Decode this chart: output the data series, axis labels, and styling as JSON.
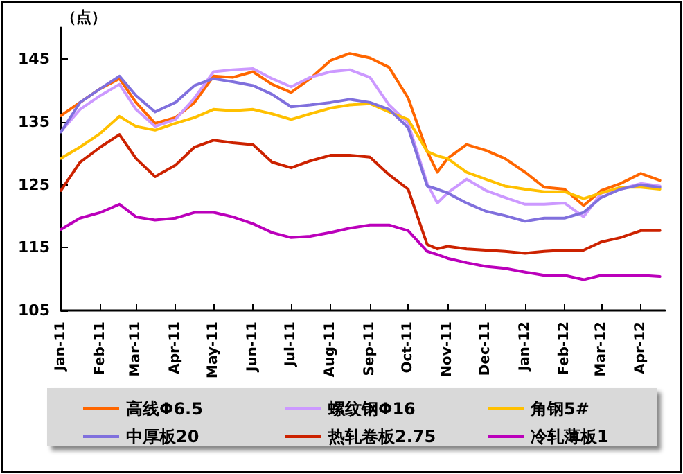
{
  "chart_data": {
    "type": "line",
    "ylabel": "（点）",
    "x": [
      "2011-01-01",
      "2011-01-16",
      "2011-02-01",
      "2011-02-16",
      "2011-03-01",
      "2011-03-16",
      "2011-04-01",
      "2011-04-16",
      "2011-05-01",
      "2011-05-16",
      "2011-06-01",
      "2011-06-16",
      "2011-07-01",
      "2011-07-16",
      "2011-08-01",
      "2011-08-16",
      "2011-09-01",
      "2011-09-16",
      "2011-10-01",
      "2011-10-16",
      "2011-10-24",
      "2011-11-01",
      "2011-11-16",
      "2011-12-01",
      "2011-12-16",
      "2012-01-01",
      "2012-01-16",
      "2012-02-01",
      "2012-02-16",
      "2012-03-01",
      "2012-03-16",
      "2012-04-01",
      "2012-04-16"
    ],
    "series": [
      {
        "name": "高线Φ6.5",
        "color": "#ff6600",
        "values": [
          136,
          138.1,
          140.3,
          141.9,
          138.1,
          134.8,
          135.7,
          138.1,
          142.3,
          142.1,
          143,
          141,
          139.7,
          141.9,
          144.8,
          145.9,
          145.2,
          143.7,
          138.8,
          130.3,
          127,
          129.2,
          131.4,
          130.5,
          129.2,
          127,
          124.6,
          124.3,
          121.7,
          124.1,
          125.2,
          126.8,
          125.7
        ]
      },
      {
        "name": "螺纹钢Φ16",
        "color": "#cc99ff",
        "values": [
          133.5,
          137,
          139.2,
          141,
          137,
          134.3,
          135.4,
          138.8,
          143,
          143.3,
          143.5,
          141.9,
          140.6,
          142.1,
          143,
          143.3,
          142.1,
          137.7,
          134.8,
          125.2,
          122.1,
          123.7,
          125.9,
          124.1,
          123,
          121.9,
          121.9,
          122.1,
          119.9,
          123.7,
          124.3,
          125.2,
          124.8
        ]
      },
      {
        "name": "角钢5#",
        "color": "#ffc000",
        "values": [
          129.2,
          131,
          133.2,
          135.9,
          134.3,
          133.7,
          134.8,
          135.7,
          137,
          136.8,
          137,
          136.3,
          135.4,
          136.3,
          137.2,
          137.7,
          137.9,
          136.6,
          135.4,
          130.3,
          129.6,
          129.2,
          127,
          125.9,
          124.8,
          124.3,
          123.9,
          123.9,
          122.8,
          123.7,
          124.6,
          124.6,
          124.3
        ]
      },
      {
        "name": "中厚板20",
        "color": "#8070dd",
        "values": [
          133.4,
          138.1,
          140.3,
          142.3,
          139.2,
          136.6,
          138.1,
          140.8,
          141.9,
          141.4,
          140.8,
          139.4,
          137.4,
          137.7,
          138.1,
          138.6,
          138.1,
          137,
          134.1,
          124.8,
          124.3,
          123.7,
          122.1,
          120.8,
          120.1,
          119.2,
          119.7,
          119.7,
          120.6,
          123,
          124.3,
          125,
          124.6
        ]
      },
      {
        "name": "热轧卷板2.75",
        "color": "#cc2200",
        "values": [
          124.1,
          128.6,
          131,
          133,
          129.2,
          126.3,
          128.1,
          131,
          132.1,
          131.7,
          131.4,
          128.6,
          127.7,
          128.8,
          129.7,
          129.7,
          129.4,
          126.6,
          124.3,
          115.5,
          114.8,
          115.2,
          114.8,
          114.6,
          114.4,
          114.1,
          114.4,
          114.6,
          114.6,
          115.9,
          116.6,
          117.7,
          117.7
        ]
      },
      {
        "name": "冷轧薄板1",
        "color": "#bb00bb",
        "values": [
          117.9,
          119.7,
          120.6,
          121.9,
          119.9,
          119.4,
          119.7,
          120.6,
          120.6,
          119.9,
          118.8,
          117.4,
          116.6,
          116.8,
          117.4,
          118.1,
          118.6,
          118.6,
          117.7,
          114.4,
          113.9,
          113.3,
          112.6,
          112,
          111.7,
          111.1,
          110.6,
          110.6,
          109.9,
          110.6,
          110.6,
          110.6,
          110.4
        ]
      }
    ],
    "xlim": [
      "2011-01-01",
      "2012-04-20"
    ],
    "xticks": [
      {
        "value": "2011-01-01",
        "label": "Jan-11"
      },
      {
        "value": "2011-02-01",
        "label": "Feb-11"
      },
      {
        "value": "2011-03-01",
        "label": "Mar-11"
      },
      {
        "value": "2011-04-01",
        "label": "Apr-11"
      },
      {
        "value": "2011-05-01",
        "label": "May-11"
      },
      {
        "value": "2011-06-01",
        "label": "Jun-11"
      },
      {
        "value": "2011-07-01",
        "label": "Jul-11"
      },
      {
        "value": "2011-08-01",
        "label": "Aug-11"
      },
      {
        "value": "2011-09-01",
        "label": "Sep-11"
      },
      {
        "value": "2011-10-01",
        "label": "Oct-11"
      },
      {
        "value": "2011-11-01",
        "label": "Nov-11"
      },
      {
        "value": "2011-12-01",
        "label": "Dec-11"
      },
      {
        "value": "2012-01-01",
        "label": "Jan-12"
      },
      {
        "value": "2012-02-01",
        "label": "Feb-12"
      },
      {
        "value": "2012-03-01",
        "label": "Mar-12"
      },
      {
        "value": "2012-04-01",
        "label": "Apr-12"
      }
    ],
    "ylim": [
      105,
      150
    ],
    "yticks": [
      105,
      115,
      125,
      135,
      145
    ],
    "grid": false,
    "legend": "bottom",
    "marker": "none",
    "line_style": "solid"
  }
}
